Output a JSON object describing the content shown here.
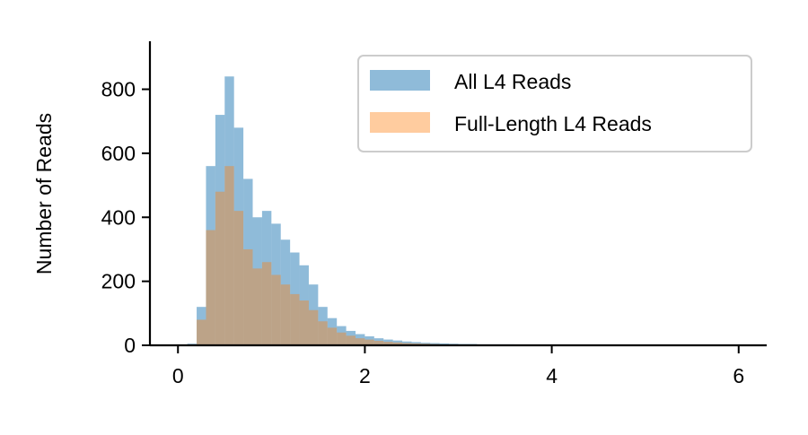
{
  "chart_data": {
    "type": "bar",
    "subtype": "overlaid-histogram",
    "title": "",
    "xlabel": "",
    "ylabel": "Number of Reads",
    "xlim": [
      -0.3,
      6.3
    ],
    "ylim": [
      0,
      950
    ],
    "xticks": [
      0,
      2,
      4,
      6
    ],
    "yticks": [
      0,
      200,
      400,
      600,
      800
    ],
    "grid": false,
    "legend_position": "top-right",
    "bin_width": 0.1,
    "x": [
      0.1,
      0.2,
      0.3,
      0.4,
      0.5,
      0.6,
      0.7,
      0.8,
      0.9,
      1.0,
      1.1,
      1.2,
      1.3,
      1.4,
      1.5,
      1.6,
      1.7,
      1.8,
      1.9,
      2.0,
      2.1,
      2.2,
      2.3,
      2.4,
      2.5,
      2.6,
      2.7,
      2.8,
      2.9,
      3.0,
      3.2,
      3.4,
      3.6,
      3.8,
      4.0,
      4.5,
      5.0,
      5.5,
      6.0
    ],
    "series": [
      {
        "name": "All L4 Reads",
        "color": "#1f77b4",
        "opacity": 0.5,
        "values": [
          5,
          120,
          560,
          720,
          840,
          680,
          520,
          400,
          420,
          380,
          330,
          290,
          250,
          190,
          120,
          85,
          60,
          45,
          35,
          28,
          22,
          18,
          15,
          12,
          10,
          8,
          7,
          6,
          5,
          4,
          3,
          3,
          2,
          2,
          2,
          1,
          1,
          1,
          1
        ]
      },
      {
        "name": "Full-Length L4 Reads",
        "color": "#ff7f0e",
        "opacity": 0.4,
        "values": [
          3,
          80,
          360,
          480,
          560,
          420,
          300,
          240,
          260,
          220,
          190,
          160,
          140,
          110,
          75,
          55,
          40,
          30,
          22,
          18,
          14,
          11,
          9,
          7,
          6,
          5,
          4,
          3,
          3,
          2,
          2,
          1,
          1,
          1,
          1,
          0,
          0,
          0,
          0
        ]
      }
    ]
  }
}
